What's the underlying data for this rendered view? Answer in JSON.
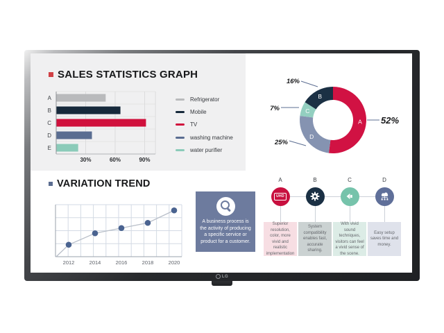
{
  "brand": {
    "logo_text": "LG"
  },
  "sales_section": {
    "title": "SALES STATISTICS GRAPH",
    "bullet_color": "#d04045"
  },
  "trend_section": {
    "title": "VARIATION TREND",
    "bullet_color": "#5b6d91"
  },
  "info_box": {
    "icon": "magnifier-icon",
    "background_color": "#6d7b9e",
    "text": "A business process is the activity of producing a specific service or product for a customer."
  },
  "steps": {
    "items": [
      {
        "letter": "A",
        "icon": "uhd-badge-icon",
        "icon_label": "UHD",
        "circle_color": "#c8103f",
        "box_color": "#f7dee3",
        "text": "Superior resolution, color, more vivid and realistic implementation"
      },
      {
        "letter": "B",
        "icon": "gear-icon",
        "circle_color": "#1b3044",
        "box_color": "#cbd2d2",
        "text": "System compatibility enables fast, accurate sharing."
      },
      {
        "letter": "C",
        "icon": "speaker-icon",
        "circle_color": "#76c3ab",
        "box_color": "#dcece6",
        "text": "With vivid sound techniques, visitors can feel a vivid sense of the scene."
      },
      {
        "letter": "D",
        "icon": "cloud-network-icon",
        "circle_color": "#5f6f99",
        "box_color": "#dfe2eb",
        "text": "Easy setup saves time and money."
      }
    ]
  },
  "chart_data": [
    {
      "type": "bar",
      "title": "SALES STATISTICS GRAPH",
      "orientation": "horizontal",
      "categories": [
        "A",
        "B",
        "C",
        "D",
        "E"
      ],
      "values": [
        50,
        65,
        91,
        36,
        22
      ],
      "unit": "%",
      "xlabel": "",
      "ylabel": "",
      "xlim": [
        0,
        101
      ],
      "xticks": [
        "30%",
        "60%",
        "90%"
      ],
      "xtick_values": [
        30,
        60,
        90
      ],
      "grid": true,
      "colors": [
        "#b9babc",
        "#16293b",
        "#d0103c",
        "#5a6d91",
        "#8bcbb9"
      ],
      "legend": [
        "Refrigerator",
        "Mobile",
        "TV",
        "washing machine",
        "water purifier"
      ],
      "legend_position": "right"
    },
    {
      "type": "pie",
      "subtype": "donut",
      "start": "top",
      "direction": "clockwise",
      "slices": [
        {
          "label": "A",
          "value": 52,
          "pct_label": "52%",
          "color": "#d11243"
        },
        {
          "label": "D",
          "value": 25,
          "pct_label": "25%",
          "color": "#8593b1"
        },
        {
          "label": "C",
          "value": 7,
          "pct_label": "7%",
          "color": "#93cfc0"
        },
        {
          "label": "B",
          "value": 16,
          "pct_label": "16%",
          "color": "#1b3044"
        }
      ]
    },
    {
      "type": "line",
      "title": "VARIATION TREND",
      "x": [
        2012,
        2014,
        2016,
        2018,
        2020
      ],
      "y": [
        23,
        45,
        55,
        65,
        89
      ],
      "ylim": [
        0,
        100
      ],
      "grid": true,
      "line_color": "#b9bfc9",
      "point_color": "#4a6390",
      "legend_position": "none"
    }
  ]
}
